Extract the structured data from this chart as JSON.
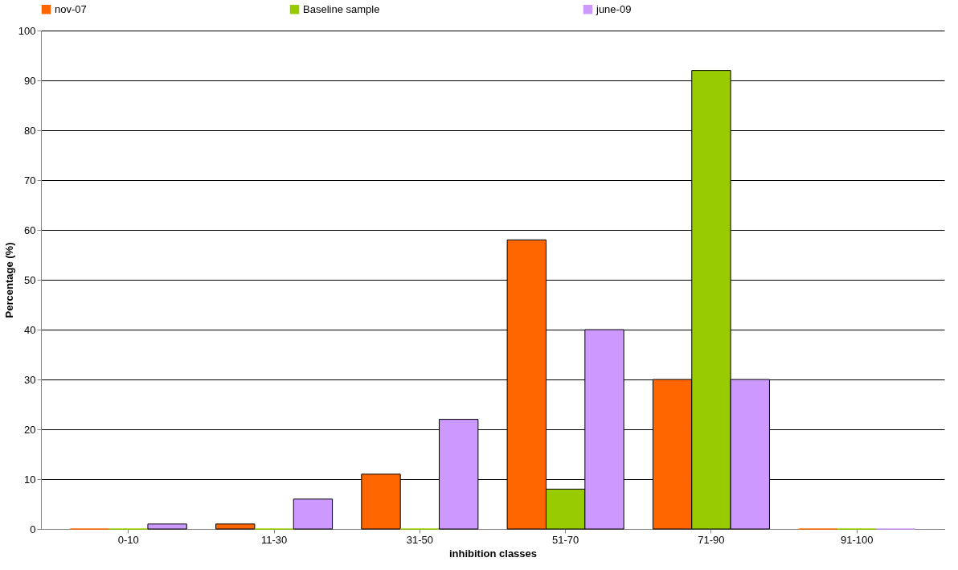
{
  "chart_data": {
    "type": "bar",
    "xlabel": "inhibition classes",
    "ylabel": "Percentage (%)",
    "categories": [
      "0-10",
      "11-30",
      "31-50",
      "51-70",
      "71-90",
      "91-100"
    ],
    "series": [
      {
        "name": "nov-07",
        "color": "#ff6600",
        "values": [
          0,
          1,
          11,
          58,
          30,
          0
        ]
      },
      {
        "name": "Baseline sample",
        "color": "#99cc00",
        "values": [
          0,
          0,
          0,
          8,
          92,
          0
        ]
      },
      {
        "name": "june-09",
        "color": "#cc99ff",
        "values": [
          1,
          6,
          22,
          40,
          30,
          0
        ]
      }
    ],
    "ylim": [
      0,
      100
    ],
    "yticks": [
      0,
      10,
      20,
      30,
      40,
      50,
      60,
      70,
      80,
      90,
      100
    ],
    "grid": "y",
    "legend": "top"
  }
}
